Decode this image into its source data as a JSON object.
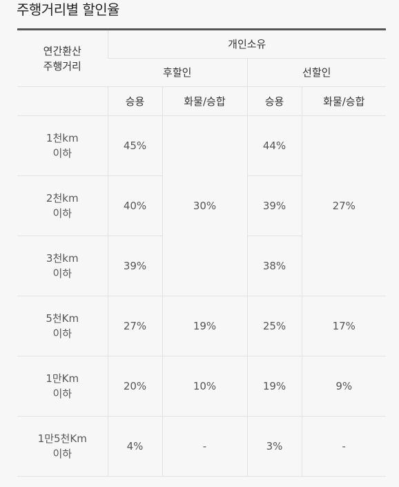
{
  "title": "주행거리별 할인율",
  "header": {
    "row_label": [
      "연간환산",
      "주행거리"
    ],
    "group": "개인소유",
    "subgroups": [
      "후할인",
      "선할인"
    ],
    "cols": [
      "승용",
      "화물/승합",
      "승용",
      "화물/승합"
    ]
  },
  "rows": [
    {
      "label": [
        "1천km",
        "이하"
      ],
      "post_car": "45%",
      "pre_car": "44%"
    },
    {
      "label": [
        "2천km",
        "이하"
      ],
      "post_car": "40%",
      "pre_car": "39%"
    },
    {
      "label": [
        "3천km",
        "이하"
      ],
      "post_car": "39%",
      "pre_car": "38%"
    },
    {
      "label": [
        "5천Km",
        "이하"
      ],
      "post_car": "27%",
      "post_truck": "19%",
      "pre_car": "25%",
      "pre_truck": "17%"
    },
    {
      "label": [
        "1만Km",
        "이하"
      ],
      "post_car": "20%",
      "post_truck": "10%",
      "pre_car": "19%",
      "pre_truck": "9%"
    },
    {
      "label": [
        "1만5천Km",
        "이하"
      ],
      "post_car": "4%",
      "post_truck": "-",
      "pre_car": "3%",
      "pre_truck": "-"
    }
  ],
  "merged": {
    "post_truck_1_3": "30%",
    "pre_truck_1_3": "27%"
  }
}
